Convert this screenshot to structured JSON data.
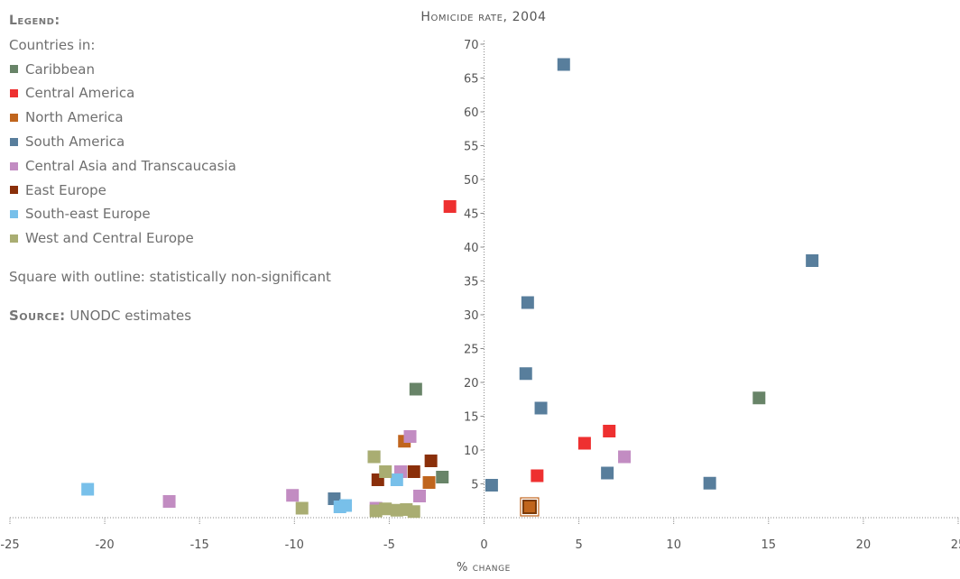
{
  "legend": {
    "title": "Legend:",
    "subtitle": "Countries in:",
    "note": "Square with outline: statistically non-significant",
    "source_label": "Source:",
    "source_text": " UNODC estimates"
  },
  "chart_data": {
    "type": "scatter",
    "title": "Homicide rate, 2004",
    "xlabel": "% change",
    "ylabel": "Homicide rate, 2004",
    "xlim": [
      -25,
      25
    ],
    "ylim": [
      0,
      70
    ],
    "xticks": [
      "-25",
      "-20",
      "-15",
      "-10",
      "-5",
      "0",
      "5",
      "10",
      "15",
      "20",
      "25"
    ],
    "yticks": [
      "5",
      "10",
      "15",
      "20",
      "25",
      "30",
      "35",
      "40",
      "45",
      "50",
      "55",
      "60",
      "65",
      "70"
    ],
    "grid": false,
    "legend_position": "top-left",
    "series": [
      {
        "name": "Caribbean",
        "color": "#688468",
        "points": [
          [
            -3.6,
            19.0
          ],
          [
            -2.2,
            6.0
          ],
          [
            -5.8,
            9.0
          ],
          [
            14.5,
            17.7
          ]
        ]
      },
      {
        "name": "Central America",
        "color": "#ee3030",
        "points": [
          [
            -1.8,
            46.0
          ],
          [
            2.8,
            6.2
          ],
          [
            5.3,
            11.0
          ],
          [
            6.6,
            12.8
          ]
        ]
      },
      {
        "name": "North America",
        "color": "#c0651d",
        "points": [
          [
            -4.2,
            11.3
          ],
          [
            -2.9,
            5.2
          ],
          [
            2.4,
            1.6
          ]
        ]
      },
      {
        "name": "South America",
        "color": "#587e9c",
        "points": [
          [
            4.2,
            67.0
          ],
          [
            17.3,
            38.0
          ],
          [
            2.3,
            31.8
          ],
          [
            2.2,
            21.3
          ],
          [
            3.0,
            16.2
          ],
          [
            6.5,
            6.6
          ],
          [
            11.9,
            5.1
          ],
          [
            0.4,
            4.8
          ],
          [
            -7.9,
            2.8
          ]
        ]
      },
      {
        "name": "Central Asia and Transcaucasia",
        "color": "#c28cc2",
        "points": [
          [
            -3.9,
            12.0
          ],
          [
            -4.4,
            6.8
          ],
          [
            -3.4,
            3.2
          ],
          [
            -10.1,
            3.3
          ],
          [
            -16.6,
            2.4
          ],
          [
            -5.7,
            1.4
          ],
          [
            7.4,
            9.0
          ]
        ]
      },
      {
        "name": "East Europe",
        "color": "#8a2f0a",
        "points": [
          [
            -3.7,
            6.8
          ],
          [
            -2.8,
            8.4
          ],
          [
            -5.6,
            5.6
          ]
        ]
      },
      {
        "name": "South-east Europe",
        "color": "#78c0ea",
        "points": [
          [
            -20.9,
            4.2
          ],
          [
            -7.6,
            1.6
          ],
          [
            -7.3,
            1.8
          ],
          [
            -4.6,
            5.6
          ]
        ]
      },
      {
        "name": "West and Central Europe",
        "color": "#a9ad72",
        "points": [
          [
            -5.8,
            9.0
          ],
          [
            -5.2,
            6.8
          ],
          [
            -9.6,
            1.4
          ],
          [
            -5.7,
            1.0
          ],
          [
            -5.2,
            1.3
          ],
          [
            -4.6,
            1.1
          ],
          [
            -4.1,
            1.2
          ],
          [
            -3.7,
            0.9
          ]
        ]
      }
    ],
    "non_significant": [
      {
        "series": "North America",
        "point": [
          2.4,
          1.6
        ]
      }
    ]
  }
}
